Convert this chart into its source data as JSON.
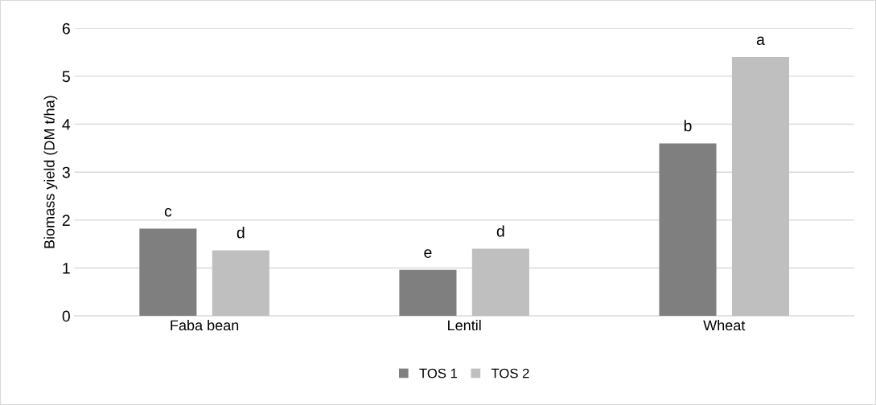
{
  "chart_data": {
    "type": "bar",
    "ylabel": "Biomass yield (DM t/ha)",
    "categories": [
      "Faba bean",
      "Lentil",
      "Wheat"
    ],
    "series": [
      {
        "name": "TOS 1",
        "color": "#7f7f7f",
        "values": [
          1.82,
          0.96,
          3.6
        ],
        "value_labels": [
          "c",
          "e",
          "b"
        ]
      },
      {
        "name": "TOS 2",
        "color": "#bfbfbf",
        "values": [
          1.37,
          1.4,
          5.4
        ],
        "value_labels": [
          "d",
          "d",
          "a"
        ]
      }
    ],
    "ylim": [
      0,
      6
    ],
    "yticks": [
      0,
      1,
      2,
      3,
      4,
      5,
      6
    ],
    "grid": "y",
    "legend": "bottom"
  }
}
